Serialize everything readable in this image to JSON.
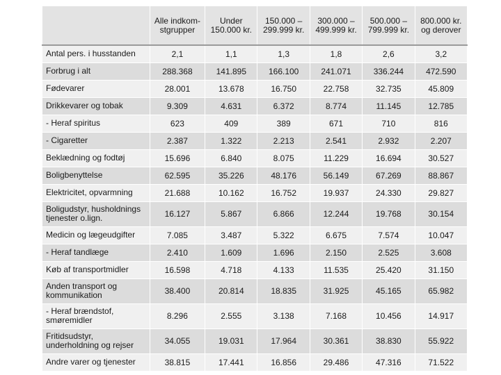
{
  "table": {
    "headers": [
      "",
      "Alle indkom-stgrupper",
      "Under 150.000 kr.",
      "150.000 – 299.999 kr.",
      "300.000 – 499.999 kr.",
      "500.000 – 799.999 kr.",
      "800.000 kr. og derover"
    ],
    "rows": [
      {
        "label": "Antal pers. i husstanden",
        "values": [
          "2,1",
          "1,1",
          "1,3",
          "1,8",
          "2,6",
          "3,2"
        ]
      },
      {
        "label": "Forbrug i alt",
        "values": [
          "288.368",
          "141.895",
          "166.100",
          "241.071",
          "336.244",
          "472.590"
        ]
      },
      {
        "label": "Fødevarer",
        "values": [
          "28.001",
          "13.678",
          "16.750",
          "22.758",
          "32.735",
          "45.809"
        ]
      },
      {
        "label": "Drikkevarer og tobak",
        "values": [
          "9.309",
          "4.631",
          "6.372",
          "8.774",
          "11.145",
          "12.785"
        ]
      },
      {
        "label": "- Heraf spiritus",
        "values": [
          "623",
          "409",
          "389",
          "671",
          "710",
          "816"
        ]
      },
      {
        "label": "- Cigaretter",
        "values": [
          "2.387",
          "1.322",
          "2.213",
          "2.541",
          "2.932",
          "2.207"
        ]
      },
      {
        "label": "Beklædning og fodtøj",
        "values": [
          "15.696",
          "6.840",
          "8.075",
          "11.229",
          "16.694",
          "30.527"
        ]
      },
      {
        "label": "Boligbenyttelse",
        "values": [
          "62.595",
          "35.226",
          "48.176",
          "56.149",
          "67.269",
          "88.867"
        ]
      },
      {
        "label": "Elektricitet, opvarmning",
        "values": [
          "21.688",
          "10.162",
          "16.752",
          "19.937",
          "24.330",
          "29.827"
        ]
      },
      {
        "label": "Boligudstyr, husholdnings tjenester o.lign.",
        "values": [
          "16.127",
          "5.867",
          "6.866",
          "12.244",
          "19.768",
          "30.154"
        ]
      },
      {
        "label": "Medicin og lægeudgifter",
        "values": [
          "7.085",
          "3.487",
          "5.322",
          "6.675",
          "7.574",
          "10.047"
        ]
      },
      {
        "label": "- Heraf tandlæge",
        "values": [
          "2.410",
          "1.609",
          "1.696",
          "2.150",
          "2.525",
          "3.608"
        ]
      },
      {
        "label": "Køb af transportmidler",
        "values": [
          "16.598",
          "4.718",
          "4.133",
          "11.535",
          "25.420",
          "31.150"
        ]
      },
      {
        "label": "Anden transport og kommunikation",
        "values": [
          "38.400",
          "20.814",
          "18.835",
          "31.925",
          "45.165",
          "65.982"
        ]
      },
      {
        "label": "- Heraf brændstof, smøremidler",
        "values": [
          "8.296",
          "2.555",
          "3.138",
          "7.168",
          "10.456",
          "14.917"
        ]
      },
      {
        "label": "Fritidsudstyr, underholdning og rejser",
        "values": [
          "34.055",
          "19.031",
          "17.964",
          "30.361",
          "38.830",
          "55.922"
        ]
      },
      {
        "label": "Andre varer og tjenester",
        "values": [
          "38.815",
          "17.441",
          "16.856",
          "29.486",
          "47.316",
          "71.522"
        ]
      }
    ]
  }
}
